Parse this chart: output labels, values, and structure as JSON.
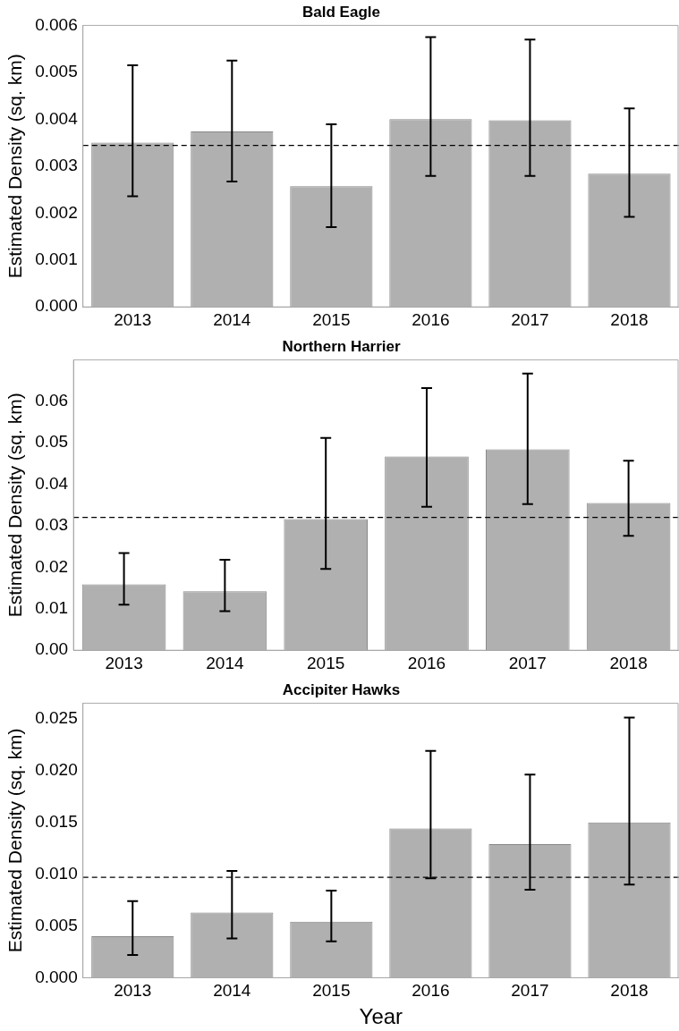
{
  "chart_data": [
    {
      "type": "bar",
      "title": "Bald Eagle",
      "ylabel": "Estimated Density (sq. km)",
      "categories": [
        "2013",
        "2014",
        "2015",
        "2016",
        "2017",
        "2018"
      ],
      "color": "#b0b0b0",
      "values": [
        0.0035,
        0.00374,
        0.00257,
        0.004,
        0.00398,
        0.00284
      ],
      "errors": [
        [
          0.00236,
          0.00515
        ],
        [
          0.00267,
          0.00525
        ],
        [
          0.0017,
          0.00389
        ],
        [
          0.00279,
          0.00575
        ],
        [
          0.00279,
          0.0057
        ],
        [
          0.00192,
          0.00423
        ]
      ],
      "ylim": [
        0,
        0.006
      ],
      "yticks": [
        {
          "value": 0,
          "label": "0.000"
        },
        {
          "value": 0.001,
          "label": "0.001"
        },
        {
          "value": 0.002,
          "label": "0.002"
        },
        {
          "value": 0.003,
          "label": "0.003"
        },
        {
          "value": 0.004,
          "label": "0.004"
        },
        {
          "value": 0.005,
          "label": "0.005"
        },
        {
          "value": 0.006,
          "label": "0.006"
        }
      ],
      "ref_lines": [
        {
          "axis": "y",
          "value": 0.00344,
          "line_style": "dashed",
          "color": "#000000"
        }
      ]
    },
    {
      "type": "bar",
      "title": "Northern Harrier",
      "ylabel": "Estimated Density (sq. km)",
      "categories": [
        "2013",
        "2014",
        "2015",
        "2016",
        "2017",
        "2018"
      ],
      "color": "#b0b0b0",
      "values": [
        0.0159,
        0.0142,
        0.0316,
        0.0467,
        0.0484,
        0.0355
      ],
      "errors": [
        [
          0.011,
          0.0234
        ],
        [
          0.0094,
          0.0218
        ],
        [
          0.0196,
          0.0512
        ],
        [
          0.0346,
          0.0632
        ],
        [
          0.0352,
          0.0667
        ],
        [
          0.0276,
          0.0457
        ]
      ],
      "ylim": [
        0,
        0.07
      ],
      "yticks": [
        {
          "value": 0,
          "label": "0.00"
        },
        {
          "value": 0.01,
          "label": "0.01"
        },
        {
          "value": 0.02,
          "label": "0.02"
        },
        {
          "value": 0.03,
          "label": "0.03"
        },
        {
          "value": 0.04,
          "label": "0.04"
        },
        {
          "value": 0.05,
          "label": "0.05"
        },
        {
          "value": 0.06,
          "label": "0.06"
        }
      ],
      "ref_lines": [
        {
          "axis": "y",
          "value": 0.032,
          "line_style": "dashed",
          "color": "#000000"
        }
      ]
    },
    {
      "type": "bar",
      "title": "Accipiter Hawks",
      "xlabel": "Year",
      "ylabel": "Estimated Density (sq. km)",
      "categories": [
        "2013",
        "2014",
        "2015",
        "2016",
        "2017",
        "2018"
      ],
      "color": "#b0b0b0",
      "values": [
        0.004,
        0.0063,
        0.0054,
        0.0144,
        0.0129,
        0.015
      ],
      "errors": [
        [
          0.0022,
          0.0074
        ],
        [
          0.0038,
          0.0103
        ],
        [
          0.0035,
          0.0084
        ],
        [
          0.0096,
          0.0219
        ],
        [
          0.0085,
          0.0196
        ],
        [
          0.009,
          0.0251
        ]
      ],
      "ylim": [
        0,
        0.0265
      ],
      "yticks": [
        {
          "value": 0,
          "label": "0.000"
        },
        {
          "value": 0.005,
          "label": "0.005"
        },
        {
          "value": 0.01,
          "label": "0.010"
        },
        {
          "value": 0.015,
          "label": "0.015"
        },
        {
          "value": 0.02,
          "label": "0.020"
        },
        {
          "value": 0.025,
          "label": "0.025"
        }
      ],
      "ref_lines": [
        {
          "axis": "y",
          "value": 0.0097,
          "line_style": "dashed",
          "color": "#000000"
        }
      ]
    }
  ]
}
